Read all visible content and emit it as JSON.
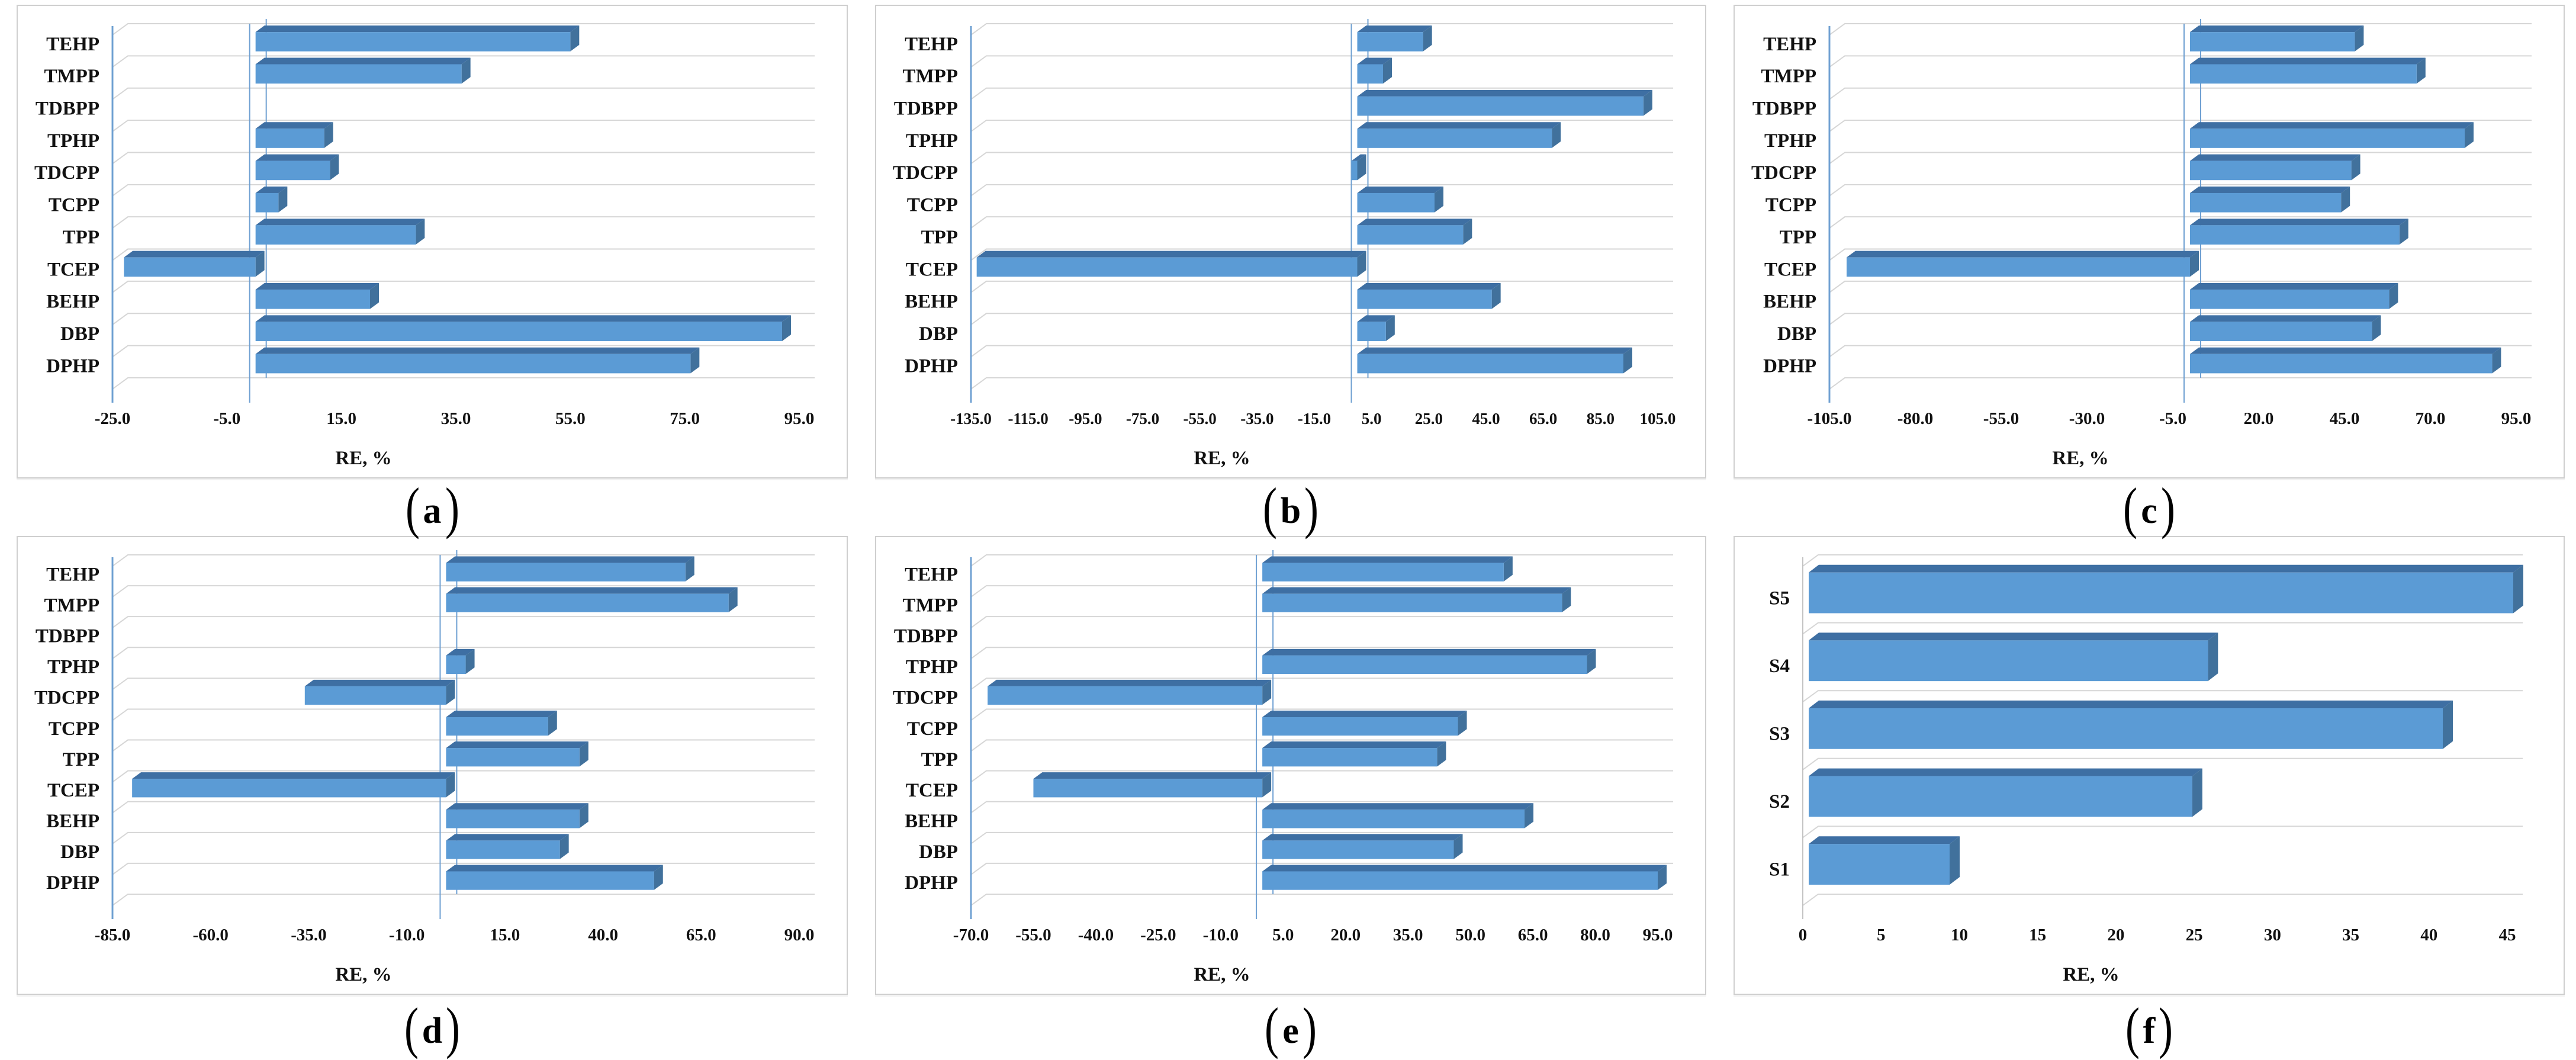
{
  "figure": {
    "axis_title": "RE, %",
    "captions": [
      {
        "open": "(",
        "letter": "a",
        "close": ")"
      },
      {
        "open": "(",
        "letter": "b",
        "close": ")"
      },
      {
        "open": "(",
        "letter": "c",
        "close": ")"
      },
      {
        "open": "(",
        "letter": "d",
        "close": ")"
      },
      {
        "open": "(",
        "letter": "e",
        "close": ")"
      },
      {
        "open": "(",
        "letter": "f",
        "close": ")"
      }
    ]
  },
  "colors": {
    "bar": "#5B9BD5",
    "bar_top": "#3E6FA3",
    "bar_side": "#41719C",
    "axis_blue": "#6FA0D2",
    "grid": "#D6D6D6",
    "f_axis": "#C4C4C4",
    "text": "#111111",
    "card_border": "#CFCFCF"
  },
  "chart_data": [
    {
      "id": "a",
      "type": "bar",
      "orientation": "horizontal",
      "grid": true,
      "legend": "none",
      "caption": {
        "open": "(",
        "letter": "a",
        "close": ")"
      },
      "categories": [
        "TEHP",
        "TMPP",
        "TDBPP",
        "TPHP",
        "TDCPP",
        "TCPP",
        "TPP",
        "TCEP",
        "BEHP",
        "DBP",
        "DPHP"
      ],
      "values": [
        55,
        36,
        0,
        12,
        13,
        4,
        28,
        -23,
        20,
        92,
        76
      ],
      "xlabel": "RE, %",
      "xlim": [
        -25,
        95
      ],
      "xticks": [
        -25,
        -5,
        15,
        35,
        55,
        75,
        95
      ],
      "tick_decimals": 1,
      "zero_line": true
    },
    {
      "id": "b",
      "type": "bar",
      "orientation": "horizontal",
      "grid": true,
      "legend": "none",
      "caption": {
        "open": "(",
        "letter": "b",
        "close": ")"
      },
      "categories": [
        "TEHP",
        "TMPP",
        "TDBPP",
        "TPHP",
        "TDCPP",
        "TCPP",
        "TPP",
        "TCEP",
        "BEHP",
        "DBP",
        "DPHP"
      ],
      "values": [
        23,
        9,
        100,
        68,
        -2,
        27,
        37,
        -133,
        47,
        10,
        93
      ],
      "xlabel": "RE, %",
      "xlim": [
        -135,
        105
      ],
      "xticks": [
        -135,
        -115,
        -95,
        -75,
        -55,
        -35,
        -15,
        5,
        25,
        45,
        65,
        85,
        105
      ],
      "tick_decimals": 1,
      "zero_line": true
    },
    {
      "id": "c",
      "type": "bar",
      "orientation": "horizontal",
      "grid": true,
      "legend": "none",
      "caption": {
        "open": "(",
        "letter": "c",
        "close": ")"
      },
      "categories": [
        "TEHP",
        "TMPP",
        "TDBPP",
        "TPHP",
        "TDCPP",
        "TCPP",
        "TPP",
        "TCEP",
        "BEHP",
        "DBP",
        "DPHP"
      ],
      "values": [
        48,
        66,
        0,
        80,
        47,
        44,
        61,
        -100,
        58,
        53,
        88
      ],
      "xlabel": "RE, %",
      "xlim": [
        -105,
        95
      ],
      "xticks": [
        -105,
        -80,
        -55,
        -30,
        -5,
        20,
        45,
        70,
        95
      ],
      "tick_decimals": 1,
      "zero_line": true
    },
    {
      "id": "d",
      "type": "bar",
      "orientation": "horizontal",
      "grid": true,
      "legend": "none",
      "caption": {
        "open": "(",
        "letter": "d",
        "close": ")"
      },
      "categories": [
        "TEHP",
        "TMPP",
        "TDBPP",
        "TPHP",
        "TDCPP",
        "TCPP",
        "TPP",
        "TCEP",
        "BEHP",
        "DBP",
        "DPHP"
      ],
      "values": [
        61,
        72,
        0,
        5,
        -36,
        26,
        34,
        -80,
        34,
        29,
        53
      ],
      "xlabel": "RE, %",
      "xlim": [
        -85,
        90
      ],
      "xticks": [
        -85,
        -60,
        -35,
        -10,
        15,
        40,
        65,
        90
      ],
      "tick_decimals": 1,
      "zero_line": true
    },
    {
      "id": "e",
      "type": "bar",
      "orientation": "horizontal",
      "grid": true,
      "legend": "none",
      "caption": {
        "open": "(",
        "letter": "e",
        "close": ")"
      },
      "categories": [
        "TEHP",
        "TMPP",
        "TDBPP",
        "TPHP",
        "TDCPP",
        "TCPP",
        "TPP",
        "TCEP",
        "BEHP",
        "DBP",
        "DPHP"
      ],
      "values": [
        58,
        72,
        0,
        78,
        -66,
        47,
        42,
        -55,
        63,
        46,
        95
      ],
      "xlabel": "RE, %",
      "xlim": [
        -70,
        95
      ],
      "xticks": [
        -70,
        -55,
        -40,
        -25,
        -10,
        5,
        20,
        35,
        50,
        65,
        80,
        95
      ],
      "tick_decimals": 1,
      "zero_line": true
    },
    {
      "id": "f",
      "type": "bar",
      "orientation": "horizontal",
      "grid": true,
      "legend": "none",
      "caption": {
        "open": "(",
        "letter": "f",
        "close": ")"
      },
      "categories": [
        "S5",
        "S4",
        "S3",
        "S2",
        "S1"
      ],
      "values": [
        45,
        25.5,
        40.5,
        24.5,
        9
      ],
      "xlabel": "RE, %",
      "xlim": [
        0,
        45
      ],
      "xticks": [
        0,
        5,
        10,
        15,
        20,
        25,
        30,
        35,
        40,
        45
      ],
      "tick_decimals": 0,
      "zero_line": false
    }
  ]
}
